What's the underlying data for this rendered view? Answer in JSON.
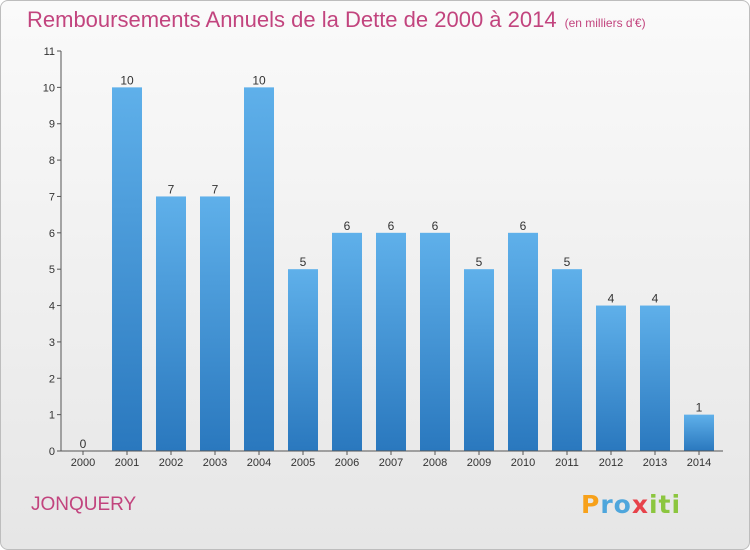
{
  "title": "Remboursements Annuels de la Dette de 2000 à 2014",
  "subtitle": "(en milliers d'€)",
  "commune": "JONQUERY",
  "brand": {
    "parts": [
      "P",
      "ro",
      "x",
      "iti"
    ],
    "colors": [
      "#f7a11a",
      "#4ea6dc",
      "#e7424a",
      "#8cc63f"
    ]
  },
  "colors": {
    "bar_top": "#5fb0ea",
    "bar_bottom": "#2a78be",
    "axis": "#555555",
    "grid": "#b0b0b0",
    "title": "#c2447e"
  },
  "chart_data": {
    "type": "bar",
    "categories": [
      "2000",
      "2001",
      "2002",
      "2003",
      "2004",
      "2005",
      "2006",
      "2007",
      "2008",
      "2009",
      "2010",
      "2011",
      "2012",
      "2013",
      "2014"
    ],
    "values": [
      0,
      10,
      7,
      7,
      10,
      5,
      6,
      6,
      6,
      5,
      6,
      5,
      4,
      4,
      1
    ],
    "data_labels": [
      "0",
      "10",
      "7",
      "7",
      "10",
      "5",
      "6",
      "6",
      "6",
      "5",
      "6",
      "5",
      "4",
      "4",
      "1"
    ],
    "yticks": [
      0,
      1,
      2,
      3,
      4,
      5,
      6,
      7,
      8,
      9,
      10,
      11
    ],
    "ylim": [
      0,
      11
    ],
    "grid": false
  }
}
